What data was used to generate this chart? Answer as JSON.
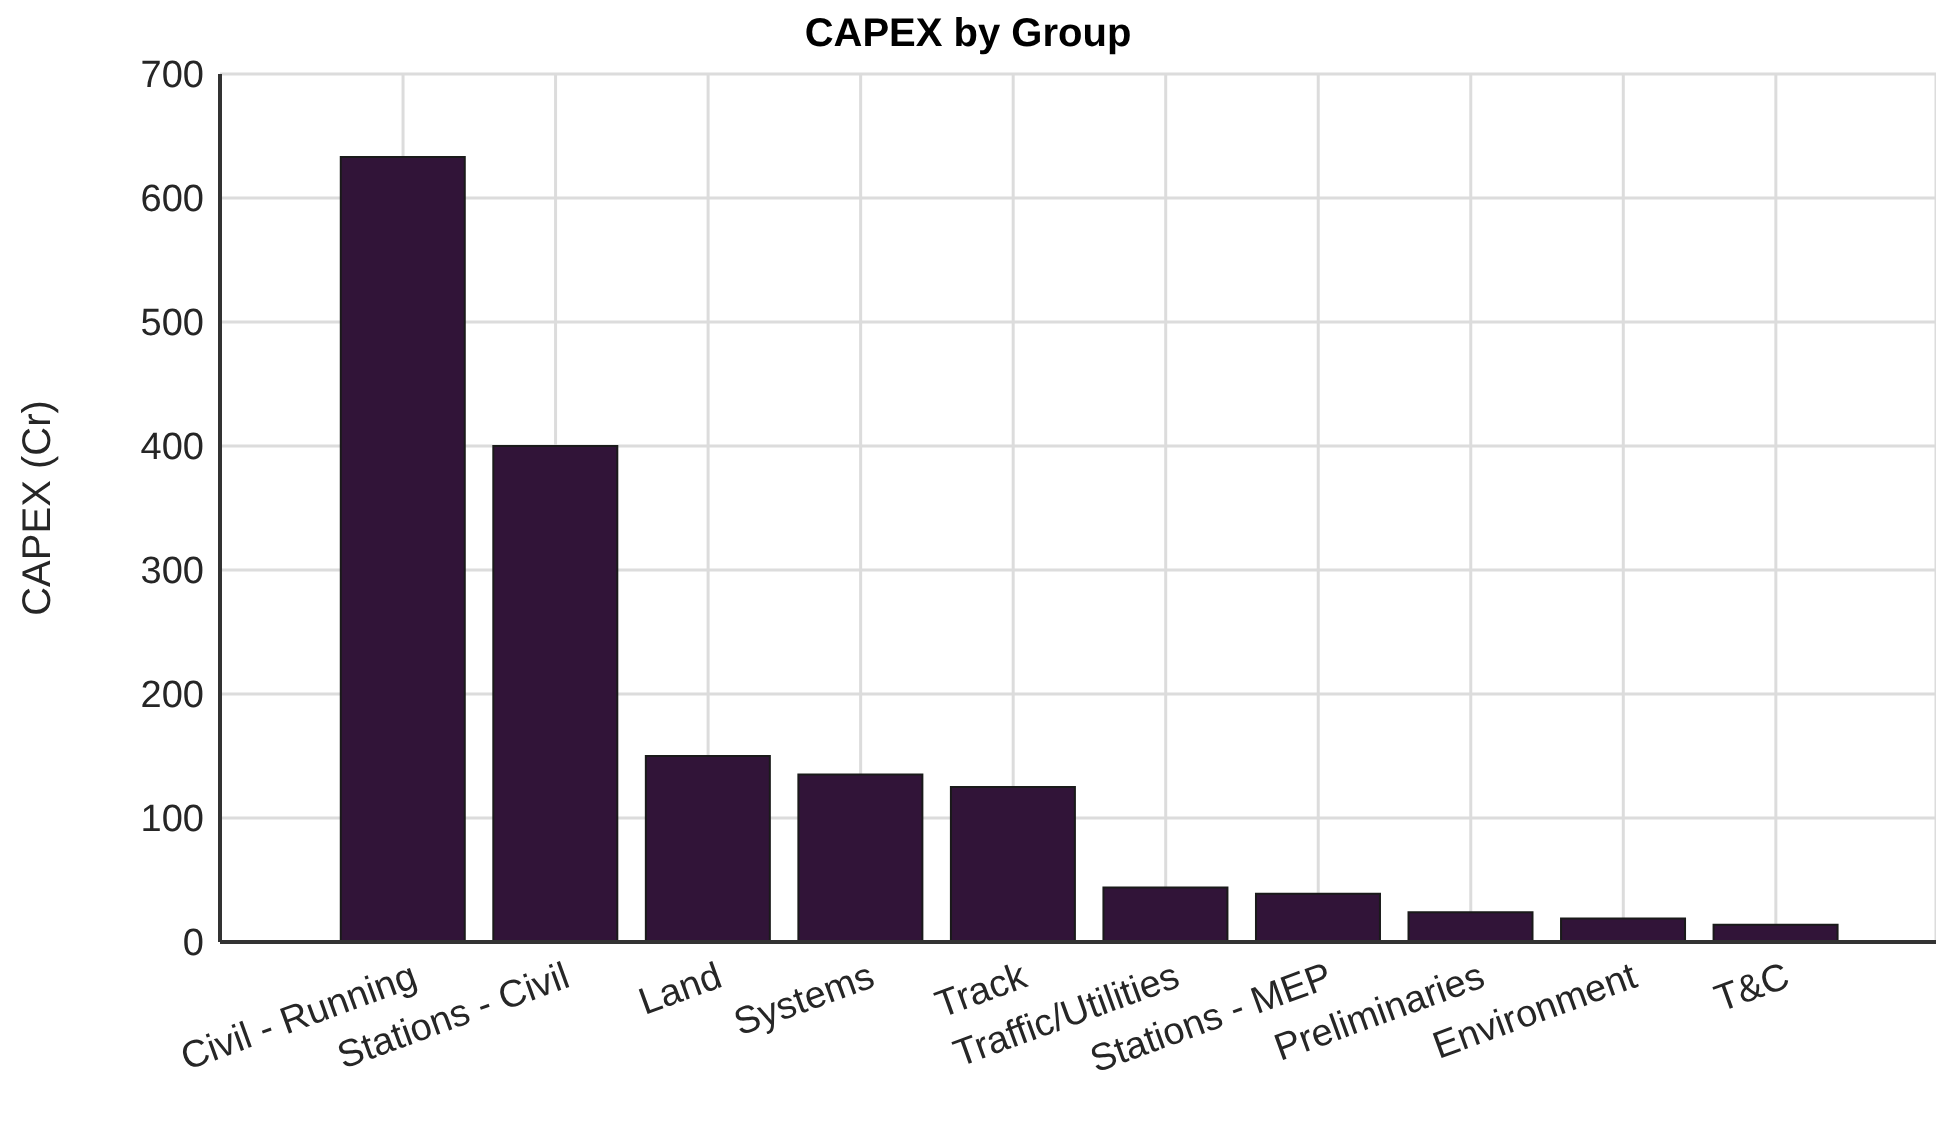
{
  "chart_data": {
    "type": "bar",
    "title": "CAPEX by Group",
    "ylabel": "CAPEX (Cr)",
    "categories": [
      "Civil - Running",
      "Stations - Civil",
      "Land",
      "Systems",
      "Track",
      "Traffic/Utilities",
      "Stations - MEP",
      "Preliminaries",
      "Environment",
      "T&C"
    ],
    "values": [
      633,
      400,
      150,
      135,
      125,
      44,
      39,
      24,
      19,
      14
    ],
    "color": "#311438",
    "ylim": [
      0,
      700
    ],
    "yticks": [
      0,
      100,
      200,
      300,
      400,
      500,
      600,
      700
    ],
    "grid": true
  }
}
